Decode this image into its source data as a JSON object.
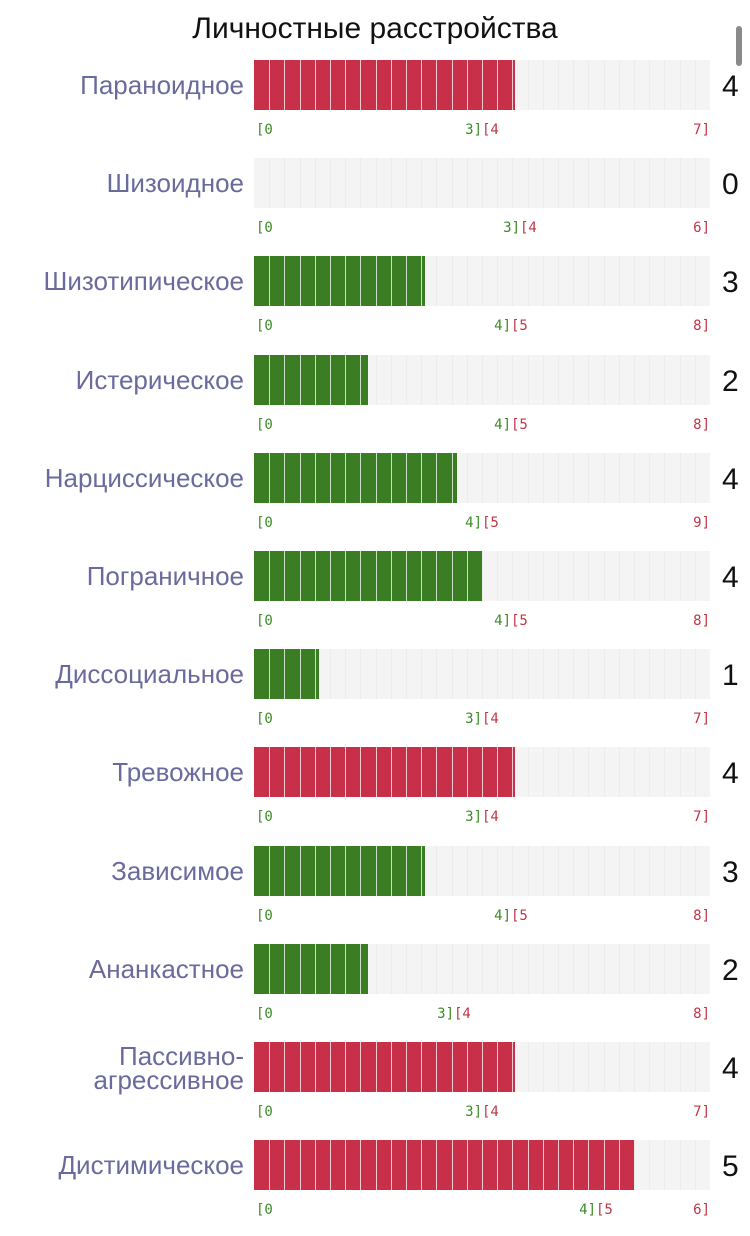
{
  "chart_data": {
    "type": "bar",
    "title": "Личностные расстройства",
    "colors": {
      "ok": "#3b7d23",
      "over": "#c8304a",
      "track": "#f4f4f4",
      "label": "#6b6a9c"
    },
    "rows": [
      {
        "name": "Параноидное",
        "value": 4,
        "max": 7,
        "threshold": 3,
        "ticks": [
          "[0",
          "3]",
          "[4",
          "7]"
        ],
        "count_text": "4"
      },
      {
        "name": "Шизоидное",
        "value": 0,
        "max": 6,
        "threshold": 3,
        "ticks": [
          "[0",
          "3]",
          "[4",
          "6]"
        ],
        "count_text": "0"
      },
      {
        "name": "Шизотипическое",
        "value": 3,
        "max": 8,
        "threshold": 4,
        "ticks": [
          "[0",
          "4]",
          "[5",
          "8]"
        ],
        "count_text": "3"
      },
      {
        "name": "Истерическое",
        "value": 2,
        "max": 8,
        "threshold": 4,
        "ticks": [
          "[0",
          "4]",
          "[5",
          "8]"
        ],
        "count_text": "2"
      },
      {
        "name": "Нарциссическое",
        "value": 4,
        "max": 9,
        "threshold": 4,
        "ticks": [
          "[0",
          "4]",
          "[5",
          "9]"
        ],
        "count_text": "4"
      },
      {
        "name": "Пограничное",
        "value": 4,
        "max": 8,
        "threshold": 4,
        "ticks": [
          "[0",
          "4]",
          "[5",
          "8]"
        ],
        "count_text": "4"
      },
      {
        "name": "Диссоциальное",
        "value": 1,
        "max": 7,
        "threshold": 3,
        "ticks": [
          "[0",
          "3]",
          "[4",
          "7]"
        ],
        "count_text": "1"
      },
      {
        "name": "Тревожное",
        "value": 4,
        "max": 7,
        "threshold": 3,
        "ticks": [
          "[0",
          "3]",
          "[4",
          "7]"
        ],
        "count_text": "4"
      },
      {
        "name": "Зависимое",
        "value": 3,
        "max": 8,
        "threshold": 4,
        "ticks": [
          "[0",
          "4]",
          "[5",
          "8]"
        ],
        "count_text": "3"
      },
      {
        "name": "Ананкастное",
        "value": 2,
        "max": 8,
        "threshold": 3,
        "ticks": [
          "[0",
          "3]",
          "[4",
          "8]"
        ],
        "count_text": "2"
      },
      {
        "name": "Пассивно-агрессивное",
        "name_lines": [
          "Пассивно-",
          "агрессивное"
        ],
        "value": 4,
        "max": 7,
        "threshold": 3,
        "ticks": [
          "[0",
          "3]",
          "[4",
          "7]"
        ],
        "count_text": "4"
      },
      {
        "name": "Дистимическое",
        "value": 5,
        "max": 6,
        "threshold": 4,
        "ticks": [
          "[0",
          "4]",
          "[5",
          "6]"
        ],
        "count_text": "5"
      }
    ]
  }
}
